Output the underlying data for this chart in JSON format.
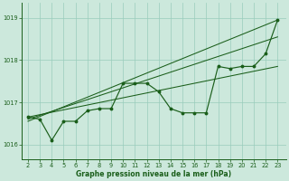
{
  "xlabel": "Graphe pression niveau de la mer (hPa)",
  "background_color": "#cce8dc",
  "plot_bg_color": "#cce8dc",
  "grid_color": "#99ccbb",
  "line_color": "#1a5e1a",
  "x_hours": [
    2,
    3,
    4,
    5,
    6,
    7,
    8,
    9,
    10,
    11,
    12,
    13,
    14,
    15,
    16,
    17,
    18,
    19,
    20,
    21,
    22,
    23
  ],
  "y_main": [
    1016.65,
    1016.6,
    1016.1,
    1016.55,
    1016.55,
    1016.8,
    1016.85,
    1016.85,
    1017.45,
    1017.45,
    1017.45,
    1017.25,
    1016.85,
    1016.75,
    1016.75,
    1016.75,
    1017.85,
    1017.8,
    1017.85,
    1017.85,
    1018.15,
    1018.95
  ],
  "trend_lines": [
    [
      1016.55,
      1018.95
    ],
    [
      1016.6,
      1018.55
    ],
    [
      1016.65,
      1017.85
    ]
  ],
  "ylim": [
    1015.65,
    1019.35
  ],
  "yticks": [
    1016,
    1017,
    1018,
    1019
  ],
  "xlim": [
    1.5,
    23.7
  ],
  "xticks": [
    2,
    3,
    4,
    5,
    6,
    7,
    8,
    9,
    10,
    11,
    12,
    13,
    14,
    15,
    16,
    17,
    18,
    19,
    20,
    21,
    22,
    23
  ]
}
